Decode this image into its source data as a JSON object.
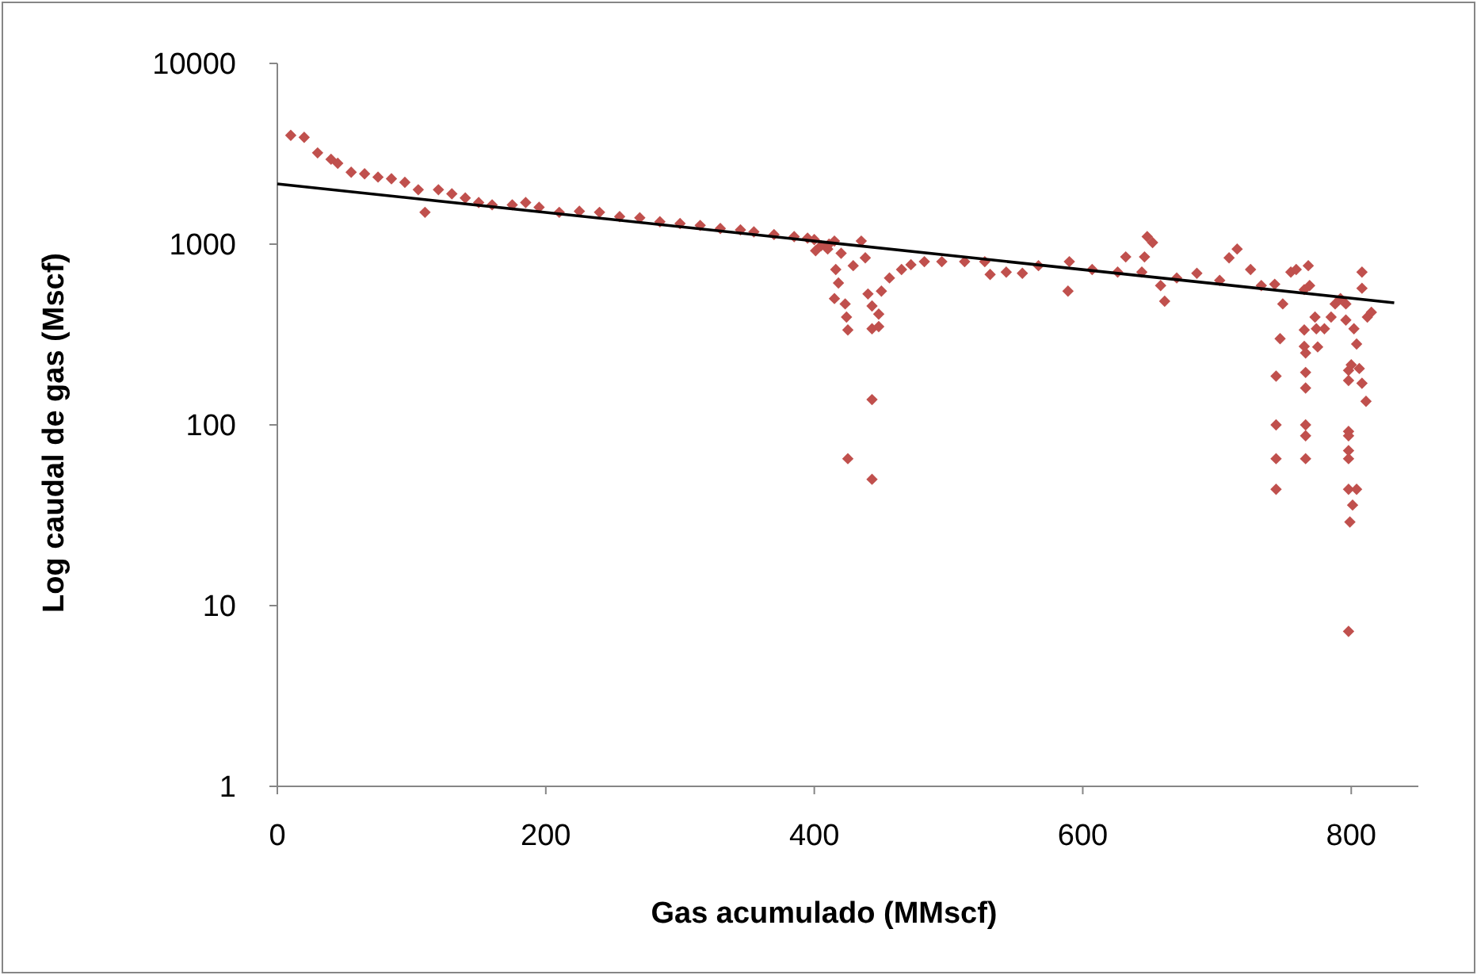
{
  "chart_data": {
    "type": "scatter",
    "xlabel": "Gas acumulado (MMscf)",
    "ylabel": "Log caudal de gas (Mscf)",
    "log": "y",
    "xlim": [
      0,
      850
    ],
    "xticks": [
      0,
      200,
      400,
      600,
      800
    ],
    "ylim": [
      1,
      10000
    ],
    "yticks": [
      1,
      10,
      100,
      1000,
      10000
    ],
    "grid": false,
    "marker": "diamond",
    "series": [
      {
        "color": "#c0504d",
        "x": [
          10,
          20,
          30,
          40,
          45,
          55,
          65,
          75,
          85,
          95,
          105,
          110,
          120,
          130,
          140,
          150,
          160,
          175,
          185,
          195,
          210,
          225,
          240,
          255,
          270,
          285,
          300,
          315,
          330,
          345,
          355,
          370,
          385,
          395,
          400,
          401,
          405,
          410,
          411,
          415,
          415,
          416,
          418,
          420,
          423,
          424,
          425,
          425,
          429,
          435,
          438,
          440,
          443,
          443,
          443,
          443,
          448,
          448,
          450,
          456,
          465,
          472,
          482,
          495,
          512,
          527,
          531,
          543,
          555,
          567,
          589,
          590,
          607,
          626,
          632,
          644,
          646,
          648,
          652,
          658,
          661,
          670,
          685,
          702,
          709,
          715,
          725,
          733,
          743,
          744,
          744,
          744,
          744,
          747,
          749,
          755,
          759,
          765,
          765,
          765,
          766,
          766,
          766,
          766,
          766,
          766,
          768,
          769,
          773,
          774,
          775,
          780,
          785,
          788,
          792,
          796,
          796,
          798,
          798,
          798,
          798,
          798,
          798,
          798,
          798,
          799,
          800,
          801,
          802,
          804,
          804,
          806,
          808,
          808,
          808,
          811,
          812,
          815
        ],
        "values": [
          4000,
          3900,
          3200,
          2950,
          2800,
          2500,
          2450,
          2350,
          2300,
          2200,
          2000,
          1500,
          2000,
          1900,
          1800,
          1700,
          1650,
          1650,
          1700,
          1600,
          1500,
          1520,
          1500,
          1420,
          1400,
          1330,
          1300,
          1270,
          1220,
          1200,
          1170,
          1130,
          1100,
          1080,
          1060,
          920,
          980,
          940,
          1000,
          1040,
          500,
          724,
          610,
          890,
          467,
          395,
          335,
          65,
          760,
          1040,
          840,
          530,
          455,
          340,
          138,
          50,
          410,
          350,
          550,
          650,
          724,
          770,
          800,
          800,
          800,
          800,
          680,
          700,
          690,
          760,
          550,
          800,
          724,
          700,
          850,
          700,
          850,
          1100,
          1020,
          590,
          483,
          650,
          690,
          630,
          840,
          940,
          724,
          590,
          600,
          186,
          100,
          65,
          44,
          300,
          467,
          700,
          724,
          560,
          335,
          272,
          250,
          195,
          160,
          100,
          87,
          65,
          760,
          590,
          395,
          340,
          270,
          340,
          395,
          467,
          500,
          467,
          380,
          200,
          176,
          92,
          87,
          72,
          65,
          44,
          7.2,
          29,
          215,
          36,
          340,
          44,
          280,
          205,
          170,
          700,
          570,
          135,
          395,
          420
        ]
      },
      {
        "type": "line",
        "color": "#000000",
        "marker": "none",
        "x": [
          0,
          832
        ],
        "values": [
          2155,
          474
        ]
      }
    ]
  }
}
